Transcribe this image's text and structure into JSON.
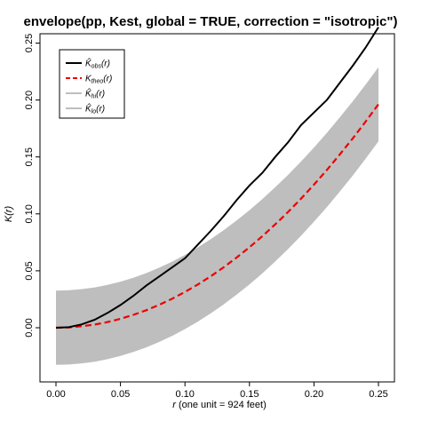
{
  "chart_data": {
    "type": "line",
    "title": "envelope(pp, Kest, global = TRUE, correction = \"isotropic\")",
    "xlabel": "(one unit = 924 feet)",
    "xlabel_var": "r",
    "ylabel": "K(r)",
    "xlim": [
      0,
      0.25
    ],
    "ylim": [
      -0.03,
      0.265
    ],
    "xticks": [
      "0.00",
      "0.05",
      "0.10",
      "0.15",
      "0.20",
      "0.25"
    ],
    "yticks": [
      "0.00",
      "0.05",
      "0.10",
      "0.15",
      "0.20",
      "0.25"
    ],
    "legend_position": "top-left",
    "legend": [
      {
        "base": "K̂",
        "sub": "obs",
        "suffix": "(r)",
        "color": "#000000",
        "style": "solid",
        "width": 2
      },
      {
        "base": "K",
        "sub": "theo",
        "suffix": "(r)",
        "color": "#ee0000",
        "style": "dashed",
        "width": 2
      },
      {
        "base": "K̂",
        "sub": "hi",
        "suffix": "(r)",
        "color": "#bebebe",
        "style": "solid",
        "width": 2
      },
      {
        "base": "K̂",
        "sub": "lo",
        "suffix": "(r)",
        "color": "#bebebe",
        "style": "solid",
        "width": 2
      }
    ],
    "x": [
      0,
      0.01,
      0.02,
      0.03,
      0.04,
      0.05,
      0.06,
      0.07,
      0.08,
      0.09,
      0.1,
      0.11,
      0.12,
      0.13,
      0.14,
      0.15,
      0.16,
      0.17,
      0.18,
      0.19,
      0.2,
      0.21,
      0.22,
      0.23,
      0.24,
      0.25
    ],
    "series": [
      {
        "name": "obs",
        "color": "#000000",
        "style": "solid",
        "values": [
          0,
          0.0005,
          0.003,
          0.007,
          0.013,
          0.02,
          0.028,
          0.037,
          0.045,
          0.053,
          0.061,
          0.073,
          0.085,
          0.098,
          0.112,
          0.125,
          0.136,
          0.15,
          0.163,
          0.178,
          0.189,
          0.2,
          0.215,
          0.23,
          0.246,
          0.264
        ]
      },
      {
        "name": "theo",
        "color": "#ee0000",
        "style": "dashed",
        "values": [
          0,
          0.0003,
          0.0013,
          0.0028,
          0.005,
          0.0079,
          0.0113,
          0.0154,
          0.0201,
          0.0254,
          0.0314,
          0.038,
          0.0452,
          0.0531,
          0.0616,
          0.0707,
          0.0804,
          0.0908,
          0.1018,
          0.1134,
          0.1257,
          0.1385,
          0.1521,
          0.1662,
          0.181,
          0.1963
        ]
      },
      {
        "name": "hi",
        "color": "#bebebe",
        "style": "solid",
        "values": [
          0.0326,
          0.0329,
          0.0339,
          0.0354,
          0.0376,
          0.0405,
          0.0439,
          0.048,
          0.0527,
          0.058,
          0.064,
          0.0706,
          0.0778,
          0.0857,
          0.0942,
          0.1033,
          0.113,
          0.1234,
          0.1344,
          0.146,
          0.1583,
          0.1711,
          0.1847,
          0.1988,
          0.2136,
          0.2289
        ]
      },
      {
        "name": "lo",
        "color": "#bebebe",
        "style": "solid",
        "values": [
          -0.0326,
          -0.0323,
          -0.0313,
          -0.0298,
          -0.0276,
          -0.0247,
          -0.0213,
          -0.0172,
          -0.0125,
          -0.0072,
          -0.0012,
          0.0054,
          0.0126,
          0.0205,
          0.029,
          0.0381,
          0.0478,
          0.0582,
          0.0692,
          0.0808,
          0.0931,
          0.1059,
          0.1195,
          0.1336,
          0.1484,
          0.1637
        ]
      }
    ],
    "colors": {
      "envelope": "#bebebe",
      "observed": "#000000",
      "theoretical": "#ee0000"
    }
  }
}
